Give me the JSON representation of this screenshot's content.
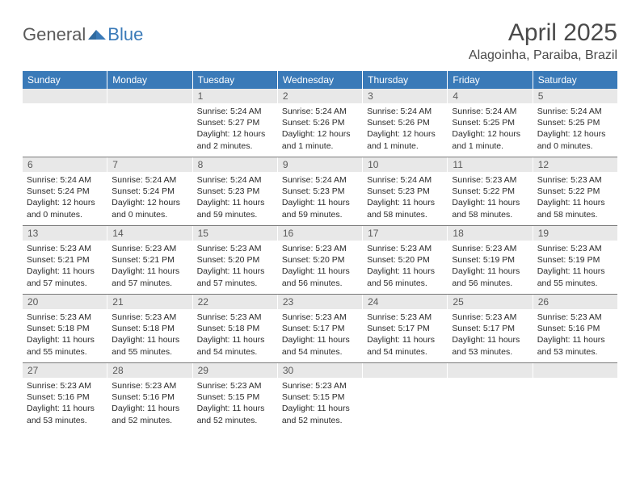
{
  "logo": {
    "text1": "General",
    "text2": "Blue"
  },
  "title": "April 2025",
  "location": "Alagoinha, Paraiba, Brazil",
  "headers": [
    "Sunday",
    "Monday",
    "Tuesday",
    "Wednesday",
    "Thursday",
    "Friday",
    "Saturday"
  ],
  "colors": {
    "header_bg": "#3a7ab8",
    "header_text": "#ffffff",
    "daynum_bg": "#e8e8e8",
    "row_border": "#7a7a7a",
    "body_text": "#2a2a2a",
    "title_text": "#4a4a4a"
  },
  "weeks": [
    [
      {
        "day": "",
        "sunrise": "",
        "sunset": "",
        "daylight": ""
      },
      {
        "day": "",
        "sunrise": "",
        "sunset": "",
        "daylight": ""
      },
      {
        "day": "1",
        "sunrise": "Sunrise: 5:24 AM",
        "sunset": "Sunset: 5:27 PM",
        "daylight": "Daylight: 12 hours and 2 minutes."
      },
      {
        "day": "2",
        "sunrise": "Sunrise: 5:24 AM",
        "sunset": "Sunset: 5:26 PM",
        "daylight": "Daylight: 12 hours and 1 minute."
      },
      {
        "day": "3",
        "sunrise": "Sunrise: 5:24 AM",
        "sunset": "Sunset: 5:26 PM",
        "daylight": "Daylight: 12 hours and 1 minute."
      },
      {
        "day": "4",
        "sunrise": "Sunrise: 5:24 AM",
        "sunset": "Sunset: 5:25 PM",
        "daylight": "Daylight: 12 hours and 1 minute."
      },
      {
        "day": "5",
        "sunrise": "Sunrise: 5:24 AM",
        "sunset": "Sunset: 5:25 PM",
        "daylight": "Daylight: 12 hours and 0 minutes."
      }
    ],
    [
      {
        "day": "6",
        "sunrise": "Sunrise: 5:24 AM",
        "sunset": "Sunset: 5:24 PM",
        "daylight": "Daylight: 12 hours and 0 minutes."
      },
      {
        "day": "7",
        "sunrise": "Sunrise: 5:24 AM",
        "sunset": "Sunset: 5:24 PM",
        "daylight": "Daylight: 12 hours and 0 minutes."
      },
      {
        "day": "8",
        "sunrise": "Sunrise: 5:24 AM",
        "sunset": "Sunset: 5:23 PM",
        "daylight": "Daylight: 11 hours and 59 minutes."
      },
      {
        "day": "9",
        "sunrise": "Sunrise: 5:24 AM",
        "sunset": "Sunset: 5:23 PM",
        "daylight": "Daylight: 11 hours and 59 minutes."
      },
      {
        "day": "10",
        "sunrise": "Sunrise: 5:24 AM",
        "sunset": "Sunset: 5:23 PM",
        "daylight": "Daylight: 11 hours and 58 minutes."
      },
      {
        "day": "11",
        "sunrise": "Sunrise: 5:23 AM",
        "sunset": "Sunset: 5:22 PM",
        "daylight": "Daylight: 11 hours and 58 minutes."
      },
      {
        "day": "12",
        "sunrise": "Sunrise: 5:23 AM",
        "sunset": "Sunset: 5:22 PM",
        "daylight": "Daylight: 11 hours and 58 minutes."
      }
    ],
    [
      {
        "day": "13",
        "sunrise": "Sunrise: 5:23 AM",
        "sunset": "Sunset: 5:21 PM",
        "daylight": "Daylight: 11 hours and 57 minutes."
      },
      {
        "day": "14",
        "sunrise": "Sunrise: 5:23 AM",
        "sunset": "Sunset: 5:21 PM",
        "daylight": "Daylight: 11 hours and 57 minutes."
      },
      {
        "day": "15",
        "sunrise": "Sunrise: 5:23 AM",
        "sunset": "Sunset: 5:20 PM",
        "daylight": "Daylight: 11 hours and 57 minutes."
      },
      {
        "day": "16",
        "sunrise": "Sunrise: 5:23 AM",
        "sunset": "Sunset: 5:20 PM",
        "daylight": "Daylight: 11 hours and 56 minutes."
      },
      {
        "day": "17",
        "sunrise": "Sunrise: 5:23 AM",
        "sunset": "Sunset: 5:20 PM",
        "daylight": "Daylight: 11 hours and 56 minutes."
      },
      {
        "day": "18",
        "sunrise": "Sunrise: 5:23 AM",
        "sunset": "Sunset: 5:19 PM",
        "daylight": "Daylight: 11 hours and 56 minutes."
      },
      {
        "day": "19",
        "sunrise": "Sunrise: 5:23 AM",
        "sunset": "Sunset: 5:19 PM",
        "daylight": "Daylight: 11 hours and 55 minutes."
      }
    ],
    [
      {
        "day": "20",
        "sunrise": "Sunrise: 5:23 AM",
        "sunset": "Sunset: 5:18 PM",
        "daylight": "Daylight: 11 hours and 55 minutes."
      },
      {
        "day": "21",
        "sunrise": "Sunrise: 5:23 AM",
        "sunset": "Sunset: 5:18 PM",
        "daylight": "Daylight: 11 hours and 55 minutes."
      },
      {
        "day": "22",
        "sunrise": "Sunrise: 5:23 AM",
        "sunset": "Sunset: 5:18 PM",
        "daylight": "Daylight: 11 hours and 54 minutes."
      },
      {
        "day": "23",
        "sunrise": "Sunrise: 5:23 AM",
        "sunset": "Sunset: 5:17 PM",
        "daylight": "Daylight: 11 hours and 54 minutes."
      },
      {
        "day": "24",
        "sunrise": "Sunrise: 5:23 AM",
        "sunset": "Sunset: 5:17 PM",
        "daylight": "Daylight: 11 hours and 54 minutes."
      },
      {
        "day": "25",
        "sunrise": "Sunrise: 5:23 AM",
        "sunset": "Sunset: 5:17 PM",
        "daylight": "Daylight: 11 hours and 53 minutes."
      },
      {
        "day": "26",
        "sunrise": "Sunrise: 5:23 AM",
        "sunset": "Sunset: 5:16 PM",
        "daylight": "Daylight: 11 hours and 53 minutes."
      }
    ],
    [
      {
        "day": "27",
        "sunrise": "Sunrise: 5:23 AM",
        "sunset": "Sunset: 5:16 PM",
        "daylight": "Daylight: 11 hours and 53 minutes."
      },
      {
        "day": "28",
        "sunrise": "Sunrise: 5:23 AM",
        "sunset": "Sunset: 5:16 PM",
        "daylight": "Daylight: 11 hours and 52 minutes."
      },
      {
        "day": "29",
        "sunrise": "Sunrise: 5:23 AM",
        "sunset": "Sunset: 5:15 PM",
        "daylight": "Daylight: 11 hours and 52 minutes."
      },
      {
        "day": "30",
        "sunrise": "Sunrise: 5:23 AM",
        "sunset": "Sunset: 5:15 PM",
        "daylight": "Daylight: 11 hours and 52 minutes."
      },
      {
        "day": "",
        "sunrise": "",
        "sunset": "",
        "daylight": ""
      },
      {
        "day": "",
        "sunrise": "",
        "sunset": "",
        "daylight": ""
      },
      {
        "day": "",
        "sunrise": "",
        "sunset": "",
        "daylight": ""
      }
    ]
  ]
}
